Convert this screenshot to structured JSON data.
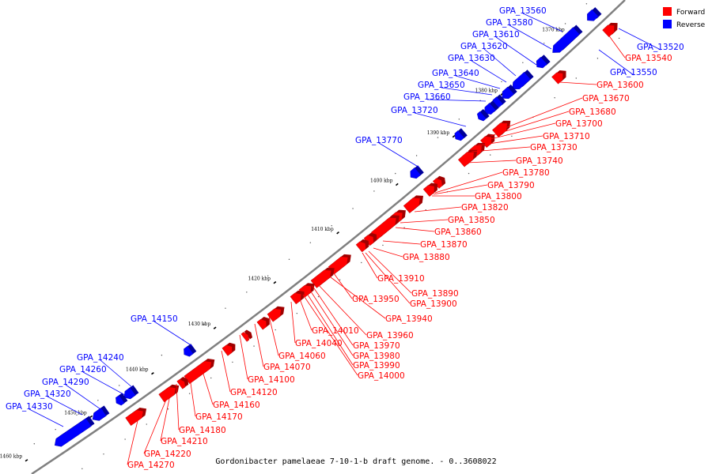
{
  "caption": "Gordonibacter pamelaeae 7-10-1-b draft genome. - 0..3608022",
  "colors": {
    "forward": "#ff0000",
    "reverse": "#0000ff",
    "backbone": "#808080"
  },
  "legend": [
    {
      "label": "Forward",
      "strand": "forward"
    },
    {
      "label": "Reverse",
      "strand": "reverse"
    }
  ],
  "ticks": [
    "1370 kbp",
    "1380 kbp",
    "1390 kbp",
    "1400 kbp",
    "1410 kbp",
    "1420 kbp",
    "1430 kbp",
    "1440 kbp",
    "1450 kbp",
    "1460 kbp"
  ],
  "genes_reverse": [
    "GPA_13560",
    "GPA_13580",
    "GPA_13610",
    "GPA_13620",
    "GPA_13630",
    "GPA_13640",
    "GPA_13650",
    "GPA_13660",
    "GPA_13720",
    "GPA_13770",
    "GPA_14150",
    "GPA_14240",
    "GPA_14260",
    "GPA_14290",
    "GPA_14320",
    "GPA_14330",
    "GPA_13520",
    "GPA_13550"
  ],
  "genes_forward": [
    "GPA_13540",
    "GPA_13600",
    "GPA_13670",
    "GPA_13680",
    "GPA_13700",
    "GPA_13710",
    "GPA_13730",
    "GPA_13740",
    "GPA_13780",
    "GPA_13790",
    "GPA_13800",
    "GPA_13820",
    "GPA_13850",
    "GPA_13860",
    "GPA_13870",
    "GPA_13880",
    "GPA_13910",
    "GPA_13890",
    "GPA_13900",
    "GPA_13950",
    "GPA_13940",
    "GPA_13960",
    "GPA_13970",
    "GPA_13980",
    "GPA_13990",
    "GPA_14000",
    "GPA_14010",
    "GPA_14040",
    "GPA_14060",
    "GPA_14070",
    "GPA_14100",
    "GPA_14120",
    "GPA_14160",
    "GPA_14170",
    "GPA_14180",
    "GPA_14210",
    "GPA_14220",
    "GPA_14270"
  ]
}
